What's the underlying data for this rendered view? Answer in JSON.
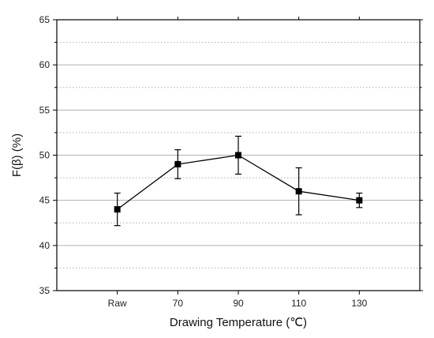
{
  "chart_data": {
    "type": "line",
    "xlabel": "Drawing Temperature (℃)",
    "ylabel": "F(β) (%)",
    "categories": [
      "Raw",
      "70",
      "90",
      "110",
      "130"
    ],
    "series": [
      {
        "values": [
          44.0,
          49.0,
          50.0,
          46.0,
          45.0
        ],
        "error_low": [
          42.2,
          47.4,
          47.9,
          43.4,
          44.2
        ],
        "error_high": [
          45.8,
          50.6,
          52.1,
          48.6,
          45.8
        ]
      }
    ],
    "ylim": [
      35,
      65
    ],
    "yticks": [
      35,
      40,
      45,
      50,
      55,
      60,
      65
    ],
    "grid": true,
    "marker": "square",
    "line_color": "#000000",
    "grid_color": "#b0b0b0"
  }
}
